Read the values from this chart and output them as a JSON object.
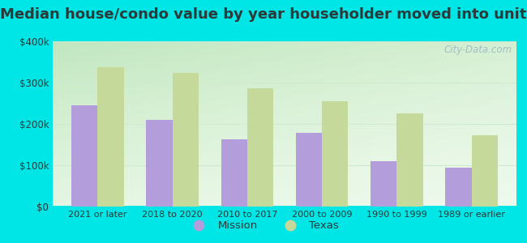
{
  "title": "Median house/condo value by year householder moved into unit",
  "categories": [
    "2021 or later",
    "2018 to 2020",
    "2010 to 2017",
    "2000 to 2009",
    "1990 to 1999",
    "1989 or earlier"
  ],
  "mission_values": [
    245000,
    210000,
    163000,
    178000,
    110000,
    95000
  ],
  "texas_values": [
    337000,
    323000,
    287000,
    255000,
    225000,
    172000
  ],
  "mission_color": "#b39ddb",
  "texas_color": "#c5d99b",
  "background_outer": "#00e5e5",
  "background_inner": "#f0faf0",
  "ylim": [
    0,
    400000
  ],
  "yticks": [
    0,
    100000,
    200000,
    300000,
    400000
  ],
  "ytick_labels": [
    "$0",
    "$100k",
    "$200k",
    "$300k",
    "$400k"
  ],
  "legend_labels": [
    "Mission",
    "Texas"
  ],
  "bar_width": 0.35,
  "title_fontsize": 13,
  "watermark_text": "City-Data.com",
  "grid_color": "#d0ead0",
  "text_color": "#2a3a3a"
}
